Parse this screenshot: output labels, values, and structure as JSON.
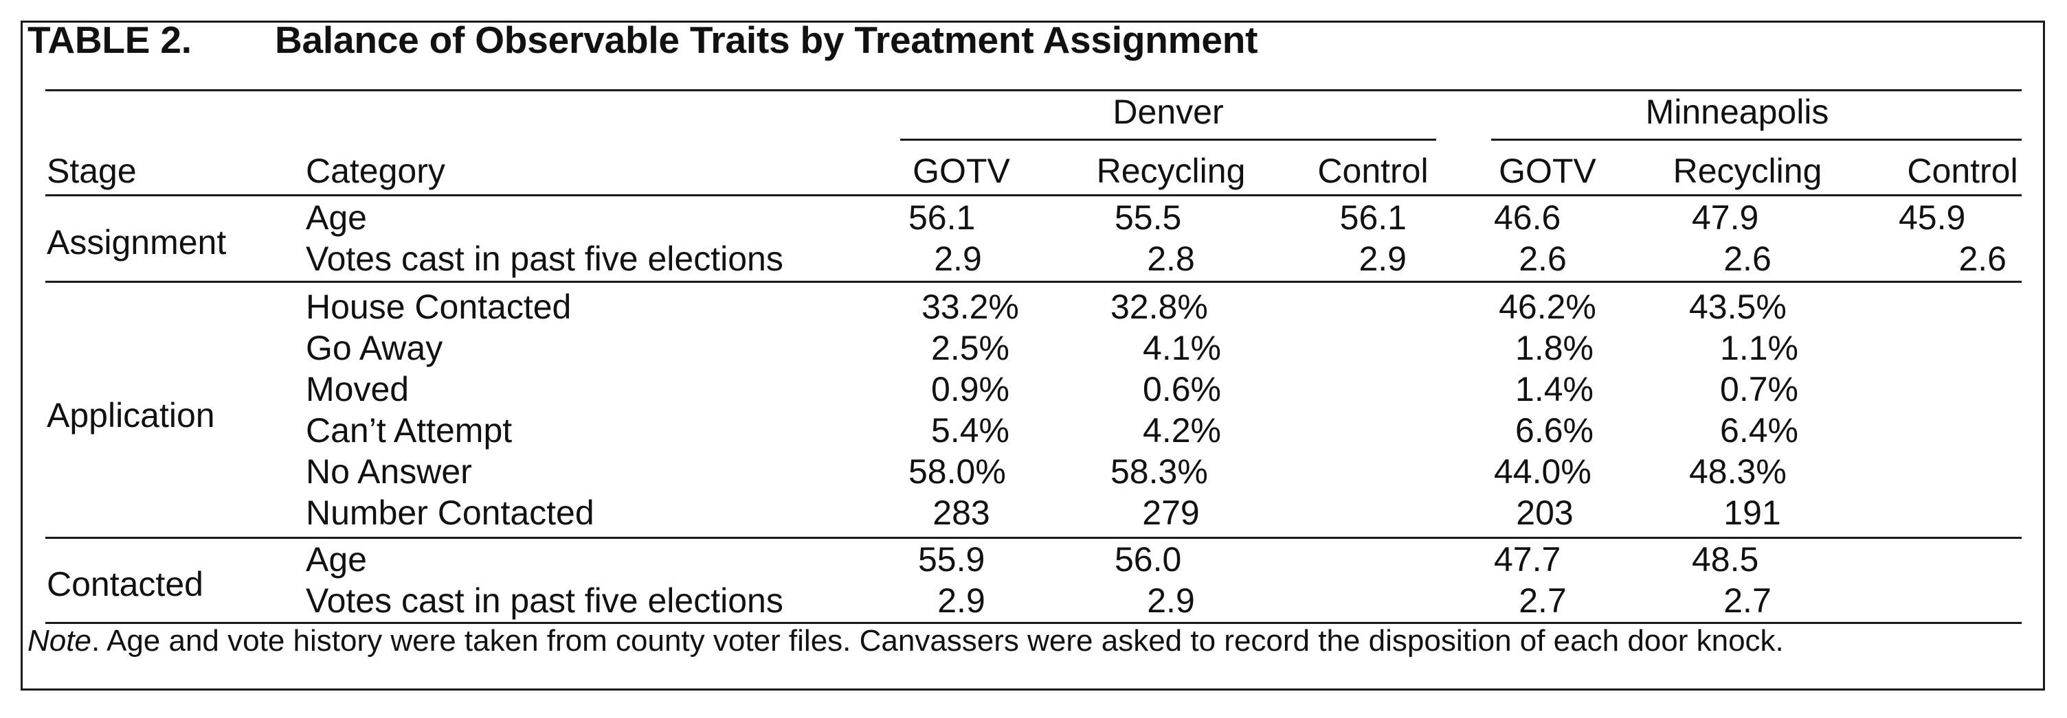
{
  "title": {
    "number": "TABLE 2.",
    "text": "Balance of Observable Traits by Treatment Assignment"
  },
  "groups": {
    "denver": "Denver",
    "minneapolis": "Minneapolis"
  },
  "headers": {
    "stage": "Stage",
    "category": "Category",
    "d_gotv": "GOTV",
    "d_recycling": "Recycling",
    "d_control": "Control",
    "m_gotv": "GOTV",
    "m_recycling": "Recycling",
    "m_control": "Control"
  },
  "stages": {
    "assignment": "Assignment",
    "application": "Application",
    "contacted": "Contacted"
  },
  "rows": [
    {
      "category": "Age",
      "d_gotv": "56.1",
      "d_rec": "55.5",
      "d_ctl": "56.1",
      "m_gotv": "46.6",
      "m_rec": "47.9",
      "m_ctl": "45.9"
    },
    {
      "category": "Votes cast in past five elections",
      "d_gotv": "2.9",
      "d_rec": "2.8",
      "d_ctl": "2.9",
      "m_gotv": "2.6",
      "m_rec": "2.6",
      "m_ctl": "2.6"
    },
    {
      "category": "House Contacted",
      "d_gotv": "33.2%",
      "d_rec": "32.8%",
      "m_gotv": "46.2%",
      "m_rec": "43.5%"
    },
    {
      "category": "Go Away",
      "d_gotv": "2.5%",
      "d_rec": "4.1%",
      "m_gotv": "1.8%",
      "m_rec": "1.1%"
    },
    {
      "category": "Moved",
      "d_gotv": "0.9%",
      "d_rec": "0.6%",
      "m_gotv": "1.4%",
      "m_rec": "0.7%"
    },
    {
      "category": "Can’t Attempt",
      "d_gotv": "5.4%",
      "d_rec": "4.2%",
      "m_gotv": "6.6%",
      "m_rec": "6.4%"
    },
    {
      "category": "No Answer",
      "d_gotv": "58.0%",
      "d_rec": "58.3%",
      "m_gotv": "44.0%",
      "m_rec": "48.3%"
    },
    {
      "category": "Number Contacted",
      "d_gotv": "283",
      "d_rec": "279",
      "m_gotv": "203",
      "m_rec": "191"
    },
    {
      "category": "Age",
      "d_gotv": "55.9",
      "d_rec": "56.0",
      "m_gotv": "47.7",
      "m_rec": "48.5"
    },
    {
      "category": "Votes cast in past five elections",
      "d_gotv": "2.9",
      "d_rec": "2.9",
      "m_gotv": "2.7",
      "m_rec": "2.7"
    }
  ],
  "note": {
    "label": "Note",
    "text": ". Age and vote history were taken from county voter files. Canvassers were asked to record the disposition of each door knock."
  }
}
